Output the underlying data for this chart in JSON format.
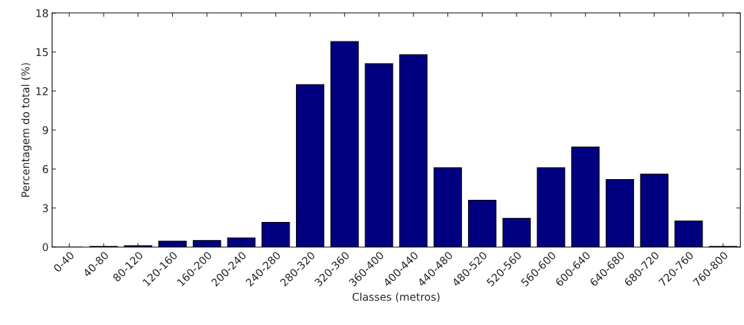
{
  "chart_data": {
    "type": "bar",
    "xlabel": "Classes (metros)",
    "ylabel": "Percentagem do total (%)",
    "categories": [
      "0-40",
      "40-80",
      "80-120",
      "120-160",
      "160-200",
      "200-240",
      "240-280",
      "280-320",
      "320-360",
      "360-400",
      "400-440",
      "440-480",
      "480-520",
      "520-560",
      "560-600",
      "600-640",
      "640-680",
      "680-720",
      "720-760",
      "760-800"
    ],
    "values": [
      0,
      0.05,
      0.1,
      0.45,
      0.5,
      0.7,
      1.9,
      12.5,
      15.8,
      14.1,
      14.8,
      6.1,
      3.6,
      2.2,
      6.1,
      7.7,
      5.2,
      5.6,
      2.0,
      0.05
    ],
    "color": "#000080",
    "ylim": [
      0,
      18
    ],
    "yticks": [
      0,
      3,
      6,
      9,
      12,
      15,
      18
    ],
    "grid": false,
    "legend": false
  }
}
